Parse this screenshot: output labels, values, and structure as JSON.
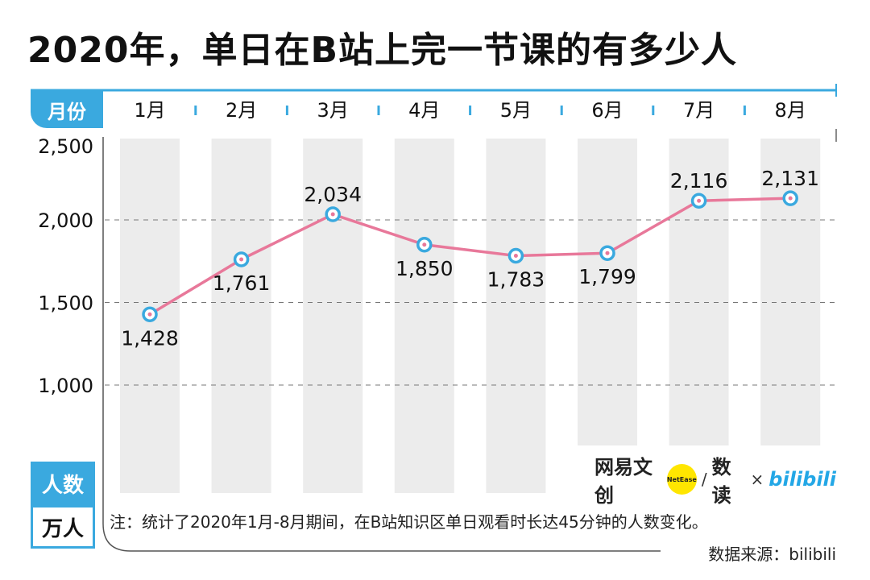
{
  "title": "2020年，单日在B站上完一节课的有多少人",
  "month_label": "月份",
  "unit": {
    "top": "人数",
    "bottom": "万人"
  },
  "note": "注：统计了2020年1月-8月期间，在B站知识区单日观看时长达45分钟的人数变化。",
  "source": "数据来源：bilibili",
  "logos": {
    "netease_text": "网易文创",
    "netease_badge": "NetEase",
    "slash": "/",
    "shudu": "数读",
    "times": "×",
    "bilibili": "bilibili"
  },
  "colors": {
    "accent": "#3aa9df",
    "line": "#e8789a",
    "band": "#ececec",
    "marker_ring": "#3aa9df"
  },
  "chart_data": {
    "type": "line",
    "categories": [
      "1月",
      "2月",
      "3月",
      "4月",
      "5月",
      "6月",
      "7月",
      "8月"
    ],
    "series": [
      {
        "values": [
          1428,
          1761,
          2034,
          1850,
          1783,
          1799,
          2116,
          2131
        ]
      }
    ],
    "data_labels": [
      "1,428",
      "1,761",
      "2,034",
      "1,850",
      "1,783",
      "1,799",
      "2,116",
      "2,131"
    ],
    "y_ticks": [
      1000,
      1500,
      2000,
      2500
    ],
    "y_tick_labels": [
      "1,000",
      "1,500",
      "2,000",
      "2,500"
    ],
    "ylim": [
      1000,
      2500
    ],
    "grid": true
  }
}
